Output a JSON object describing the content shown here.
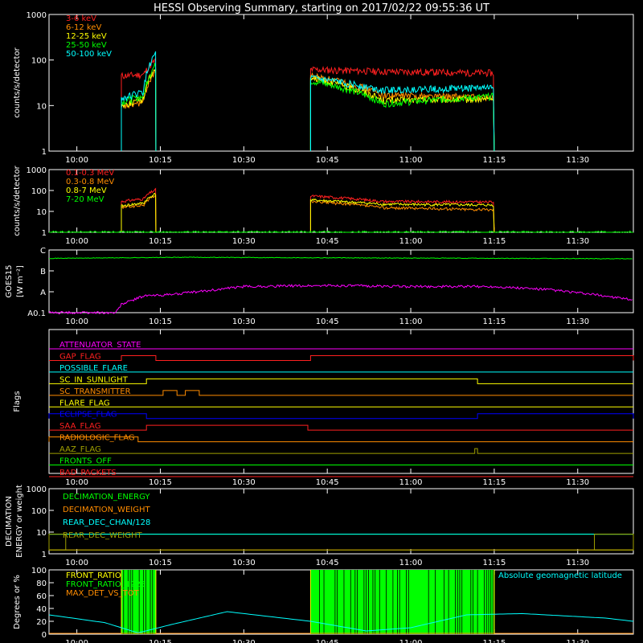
{
  "title": "HESSI Observing Summary, starting on 2017/02/22 09:55:36 UT",
  "time_axis": {
    "start_minute": -5,
    "end_minute": 100,
    "ticks": [
      {
        "label": "10:00",
        "minute": 0
      },
      {
        "label": "10:15",
        "minute": 15
      },
      {
        "label": "10:30",
        "minute": 30
      },
      {
        "label": "10:45",
        "minute": 45
      },
      {
        "label": "11:00",
        "minute": 60
      },
      {
        "label": "11:15",
        "minute": 75
      },
      {
        "label": "11:30",
        "minute": 90
      }
    ]
  },
  "chart_data": [
    {
      "type": "line",
      "name": "energy-bands",
      "ylabel": "counts/s/detector",
      "yscale": "log",
      "ylim": [
        1,
        1000
      ],
      "yticks": [
        "1",
        "10",
        "100",
        "1000"
      ],
      "series": [
        {
          "name": "3-6 keV",
          "color": "#ff2020",
          "segments": [
            [
              [
                8,
                45
              ],
              [
                12,
                48
              ],
              [
                14.2,
                100
              ]
            ],
            [
              [
                42,
                62
              ],
              [
                55,
                56
              ],
              [
                75,
                52
              ]
            ]
          ]
        },
        {
          "name": "6-12 keV",
          "color": "#ff8c00",
          "segments": [
            [
              [
                8,
                9
              ],
              [
                12,
                12
              ],
              [
                14.2,
                60
              ]
            ],
            [
              [
                42,
                45
              ],
              [
                55,
                17
              ],
              [
                75,
                15
              ]
            ]
          ]
        },
        {
          "name": "12-25 keV",
          "color": "#ffff00",
          "segments": [
            [
              [
                8,
                10
              ],
              [
                12,
                14
              ],
              [
                14.2,
                70
              ]
            ],
            [
              [
                42,
                40
              ],
              [
                55,
                13
              ],
              [
                75,
                14
              ]
            ]
          ]
        },
        {
          "name": "25-50 keV",
          "color": "#00ff00",
          "segments": [
            [
              [
                8,
                12
              ],
              [
                12,
                16
              ],
              [
                14.2,
                80
              ]
            ],
            [
              [
                42,
                35
              ],
              [
                55,
                11
              ],
              [
                75,
                16
              ]
            ]
          ]
        },
        {
          "name": "50-100 keV",
          "color": "#00ffff",
          "segments": [
            [
              [
                8,
                14
              ],
              [
                12,
                20
              ],
              [
                14.2,
                140
              ]
            ],
            [
              [
                42,
                40
              ],
              [
                55,
                22
              ],
              [
                75,
                25
              ]
            ]
          ]
        }
      ]
    },
    {
      "type": "line",
      "name": "high-energy-bands",
      "ylabel": "counts/s/detector",
      "yscale": "log",
      "ylim": [
        1,
        1000
      ],
      "yticks": [
        "1",
        "10",
        "100",
        "1000"
      ],
      "series": [
        {
          "name": "0.1-0.3 MeV",
          "color": "#ff2020",
          "segments": [
            [
              [
                8,
                30
              ],
              [
                12,
                40
              ],
              [
                14.2,
                110
              ]
            ],
            [
              [
                42,
                55
              ],
              [
                55,
                30
              ],
              [
                75,
                28
              ]
            ]
          ]
        },
        {
          "name": "0.3-0.8 MeV",
          "color": "#ff8c00",
          "segments": [
            [
              [
                8,
                15
              ],
              [
                12,
                20
              ],
              [
                14.2,
                60
              ]
            ],
            [
              [
                42,
                30
              ],
              [
                55,
                15
              ],
              [
                75,
                12
              ]
            ]
          ]
        },
        {
          "name": "0.8-7 MeV",
          "color": "#ffff00",
          "segments": [
            [
              [
                8,
                18
              ],
              [
                12,
                25
              ],
              [
                14.2,
                70
              ]
            ],
            [
              [
                42,
                35
              ],
              [
                55,
                22
              ],
              [
                75,
                20
              ]
            ]
          ]
        },
        {
          "name": "7-20 MeV",
          "color": "#00ff00",
          "segments": [
            [
              [
                -5,
                1
              ],
              [
                100,
                1
              ]
            ]
          ]
        }
      ]
    },
    {
      "type": "line",
      "name": "goes",
      "ylabel": "GOES15",
      "ylabel_unit": "[W m⁻²]",
      "ylevels": [
        "A0.1",
        "A",
        "B",
        "C"
      ],
      "series": [
        {
          "name": "long",
          "color": "#00ff00",
          "points": [
            [
              -5,
              2.6
            ],
            [
              20,
              2.65
            ],
            [
              50,
              2.62
            ],
            [
              100,
              2.58
            ]
          ]
        },
        {
          "name": "short",
          "color": "#ff00ff",
          "points": [
            [
              -5,
              0
            ],
            [
              7,
              0
            ],
            [
              8,
              0.4
            ],
            [
              10,
              0.6
            ],
            [
              12,
              0.8
            ],
            [
              16,
              0.85
            ],
            [
              20,
              0.95
            ],
            [
              30,
              1.25
            ],
            [
              45,
              1.3
            ],
            [
              60,
              1.25
            ],
            [
              75,
              1.25
            ],
            [
              85,
              1.1
            ],
            [
              95,
              0.8
            ],
            [
              100,
              0.6
            ]
          ]
        }
      ]
    },
    {
      "type": "line",
      "name": "flags",
      "ylabel": "Flags",
      "series": [
        {
          "name": "ATTENUATOR_STATE",
          "color": "#ff00ff",
          "steps": []
        },
        {
          "name": "GAP_FLAG",
          "color": "#ff2020",
          "steps": [
            [
              8,
              14.2
            ],
            [
              42,
              100
            ]
          ]
        },
        {
          "name": "POSSIBLE_FLARE",
          "color": "#00ffff",
          "steps": []
        },
        {
          "name": "SC_IN_SUNLIGHT",
          "color": "#ffff00",
          "steps": [
            [
              12.5,
              72
            ]
          ]
        },
        {
          "name": "SC_TRANSMITTER",
          "color": "#ff8c00",
          "steps": [
            [
              15.5,
              18
            ],
            [
              19.5,
              22
            ]
          ]
        },
        {
          "name": "FLARE_FLAG",
          "color": "#ffff00",
          "steps": []
        },
        {
          "name": "ECLIPSE_FLAG",
          "color": "#0000ff",
          "steps": [
            [
              -5,
              12.5
            ],
            [
              72,
              100
            ]
          ]
        },
        {
          "name": "SAA_FLAG",
          "color": "#ff2020",
          "steps": [
            [
              12.5,
              41.5
            ]
          ]
        },
        {
          "name": "RADIOLOGIC_FLAG",
          "color": "#ff8c00",
          "steps": [
            [
              -5,
              11
            ]
          ]
        },
        {
          "name": "AAZ_FLAG",
          "color": "#a0a000",
          "steps": [
            [
              71.5,
              72
            ]
          ]
        },
        {
          "name": "FRONTS_OFF",
          "color": "#00ff00",
          "steps": []
        },
        {
          "name": "BAD_PACKETS",
          "color": "#ff2020",
          "steps": []
        }
      ]
    },
    {
      "type": "line",
      "name": "decimation",
      "ylabel": "DECIMATION",
      "ylabel2": "ENERGY or weight",
      "yscale": "log",
      "ylim": [
        1,
        1000
      ],
      "yticks": [
        "1",
        "10",
        "100",
        "1000"
      ],
      "series": [
        {
          "name": "DECIMATION_ENERGY",
          "color": "#00ff00",
          "points": [
            [
              -5,
              8
            ],
            [
              100,
              8
            ]
          ]
        },
        {
          "name": "DECIMATION_WEIGHT",
          "color": "#ff8c00",
          "points": [
            [
              -5,
              1.5
            ],
            [
              100,
              1.5
            ]
          ]
        },
        {
          "name": "REAR_DEC_CHAN/128",
          "color": "#00ffff",
          "points": [
            [
              -5,
              8
            ],
            [
              -2,
              8
            ],
            [
              -2,
              8
            ],
            [
              100,
              8
            ]
          ]
        },
        {
          "name": "REAR_DEC_WEIGHT",
          "color": "#a0a000",
          "points": [
            [
              -5,
              1.5
            ],
            [
              100,
              1.5
            ]
          ]
        }
      ]
    },
    {
      "type": "line",
      "name": "ratios",
      "ylabel": "Degrees or %",
      "ylim": [
        0,
        100
      ],
      "yticks": [
        "0",
        "20",
        "40",
        "60",
        "80",
        "100"
      ],
      "extra_label": "Absolute geomagnetic latitude",
      "series": [
        {
          "name": "FRONT_RATIO",
          "color": "#ffff00",
          "segments": []
        },
        {
          "name": "FRONT_RATIO_1225",
          "color": "#00ff00",
          "segments": [
            [
              8,
              14.2
            ],
            [
              42,
              75
            ]
          ]
        },
        {
          "name": "MAX_DET_VS_TOT",
          "color": "#ff8c00",
          "segments": []
        },
        {
          "name": "Absolute geomagnetic latitude",
          "color": "#00ffff",
          "points": [
            [
              -5,
              30
            ],
            [
              5,
              18
            ],
            [
              11,
              2
            ],
            [
              17,
              15
            ],
            [
              27,
              35
            ],
            [
              42,
              20
            ],
            [
              52,
              5
            ],
            [
              60,
              10
            ],
            [
              70,
              30
            ],
            [
              80,
              32
            ],
            [
              95,
              25
            ],
            [
              100,
              20
            ]
          ]
        }
      ]
    }
  ]
}
